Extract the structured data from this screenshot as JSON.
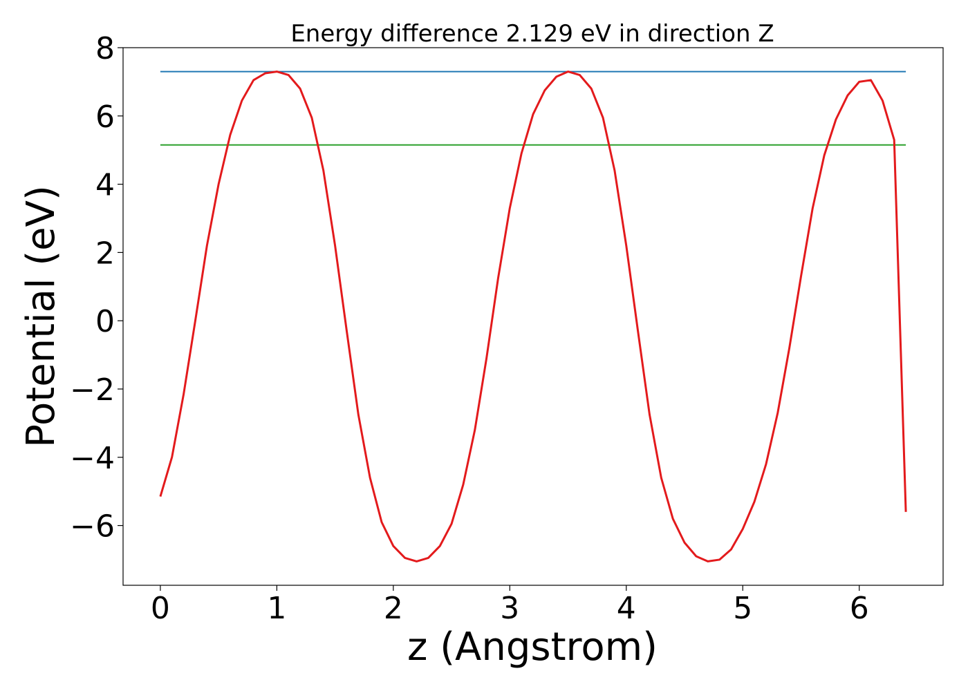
{
  "chart_data": {
    "type": "line",
    "title": "Energy difference 2.129 eV in direction Z",
    "xlabel": "z (Angstrom)",
    "ylabel": "Potential (eV)",
    "xlim": [
      -0.32,
      6.72
    ],
    "ylim": [
      -7.75,
      8.0
    ],
    "xticks": [
      0,
      1,
      2,
      3,
      4,
      5,
      6
    ],
    "yticks": [
      -6,
      -4,
      -2,
      0,
      2,
      4,
      6,
      8
    ],
    "ytick_labels": [
      "−6",
      "−4",
      "−2",
      "0",
      "2",
      "4",
      "6",
      "8"
    ],
    "grid": false,
    "series": [
      {
        "color": "#1f77b4",
        "style": "hline",
        "x": [
          0,
          6.4
        ],
        "y": [
          7.3,
          7.3
        ]
      },
      {
        "color": "#2ca02c",
        "style": "hline",
        "x": [
          0,
          6.4
        ],
        "y": [
          5.15,
          5.15
        ]
      },
      {
        "color": "#e31a1c",
        "style": "line",
        "x": [
          0,
          0.1,
          0.2,
          0.3,
          0.4,
          0.5,
          0.6,
          0.7,
          0.8,
          0.9,
          1.0,
          1.1,
          1.2,
          1.3,
          1.4,
          1.5,
          1.6,
          1.7,
          1.8,
          1.9,
          2.0,
          2.1,
          2.2,
          2.3,
          2.4,
          2.5,
          2.6,
          2.7,
          2.8,
          2.9,
          3.0,
          3.1,
          3.2,
          3.3,
          3.4,
          3.5,
          3.6,
          3.7,
          3.8,
          3.9,
          4.0,
          4.1,
          4.2,
          4.3,
          4.4,
          4.5,
          4.6,
          4.7,
          4.8,
          4.9,
          5.0,
          5.1,
          5.2,
          5.3,
          5.4,
          5.5,
          5.6,
          5.7,
          5.8,
          5.9,
          6.0,
          6.1,
          6.2,
          6.3,
          6.4
        ],
        "y": [
          -5.15,
          -3.99,
          -2.15,
          0.0,
          2.2,
          4.0,
          5.45,
          6.45,
          7.05,
          7.25,
          7.3,
          7.2,
          6.8,
          5.95,
          4.4,
          2.2,
          -0.3,
          -2.75,
          -4.6,
          -5.9,
          -6.6,
          -6.95,
          -7.05,
          -6.95,
          -6.6,
          -5.95,
          -4.8,
          -3.2,
          -1.1,
          1.25,
          3.3,
          4.9,
          6.05,
          6.75,
          7.15,
          7.3,
          7.2,
          6.8,
          5.95,
          4.4,
          2.2,
          -0.3,
          -2.75,
          -4.6,
          -5.8,
          -6.5,
          -6.9,
          -7.05,
          -7.0,
          -6.7,
          -6.1,
          -5.3,
          -4.2,
          -2.7,
          -0.8,
          1.3,
          3.3,
          4.85,
          5.9,
          6.6,
          7.0,
          7.05,
          6.45,
          5.3,
          -5.6
        ]
      }
    ]
  }
}
